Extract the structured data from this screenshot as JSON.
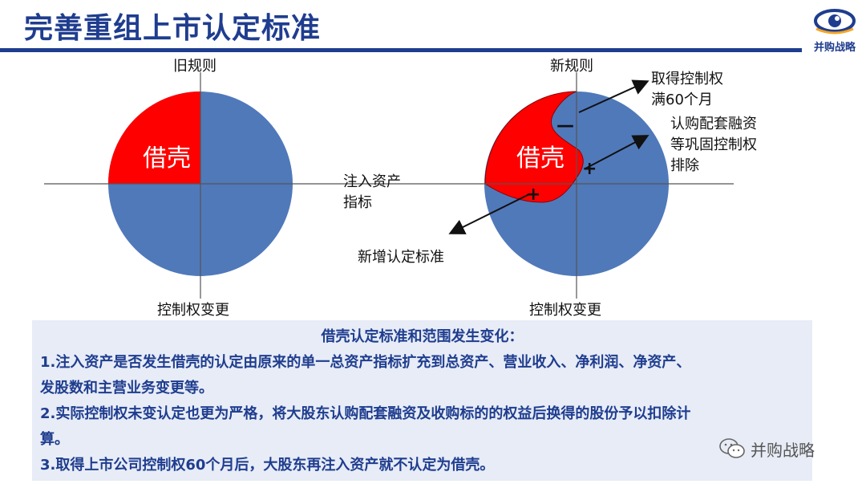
{
  "header": {
    "title": "完善重组上市认定标准",
    "logo_text": "并购战略"
  },
  "diagram": {
    "old": {
      "top_label": "旧规则",
      "bottom_label": "控制权变更",
      "region_label": "借壳"
    },
    "new": {
      "top_label": "新规则",
      "bottom_label": "控制权变更",
      "region_label": "借壳",
      "minus_mark": "—",
      "plus_mark_1": "+",
      "plus_mark_2": "+"
    },
    "axis_label_line1": "注入资产",
    "axis_label_line2": "指标",
    "callout_1_line1": "取得控制权",
    "callout_1_line2": "满60个月",
    "callout_2_line1": "认购配套融资",
    "callout_2_line2": "等巩固控制权",
    "callout_2_line3": "排除",
    "callout_3": "新增认定标准",
    "colors": {
      "circle": "#5079ba",
      "region": "#ff0000",
      "title": "#1f3d8f"
    }
  },
  "summary": {
    "heading": "借壳认定标准和范围发生变化：",
    "line1": "1.注入资产是否发生借壳的认定由原来的单一总资产指标扩充到总资产、营业收入、净利润、净资产、",
    "line2": "发股数和主营业务变更等。",
    "line3": "2.实际控制权未变认定也更为严格，将大股东认购配套融资及收购标的的权益后换得的股份予以扣除计",
    "line4": "算。",
    "line5": "3.取得上市公司控制权60个月后，大股东再注入资产就不认定为借壳。"
  },
  "watermark": {
    "text": "并购战略",
    "icon": "wechat-icon"
  }
}
